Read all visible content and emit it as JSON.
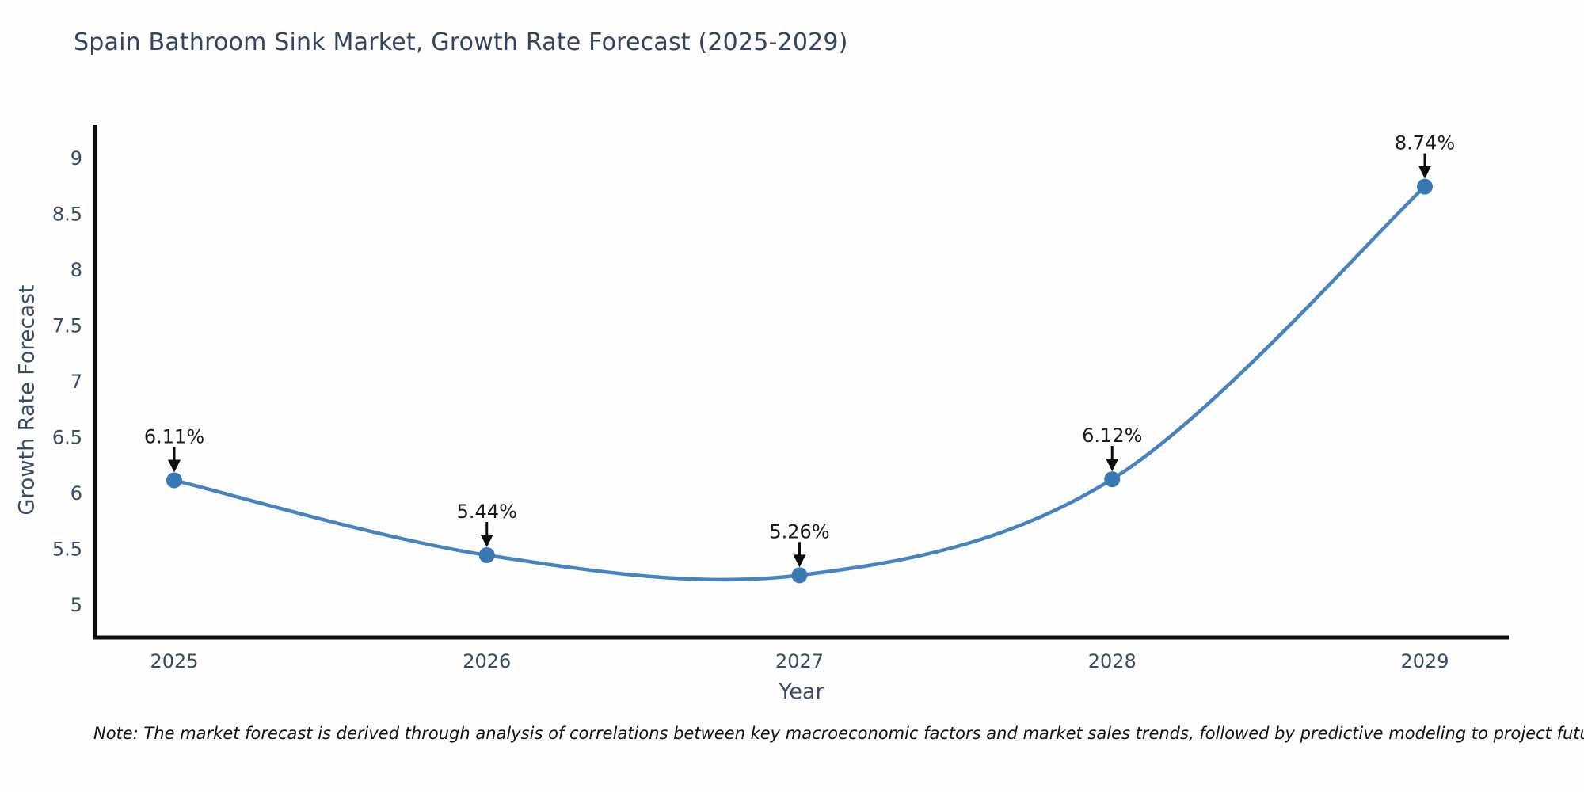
{
  "title": "Spain Bathroom Sink Market, Growth Rate Forecast (2025-2029)",
  "note": "Note: The market forecast is derived through analysis of correlations between key macroeconomic factors and market sales trends, followed by predictive modeling to project future sales",
  "chart_data": {
    "type": "line",
    "title": "Spain Bathroom Sink Market, Growth Rate Forecast (2025-2029)",
    "xlabel": "Year",
    "ylabel": "Growth Rate Forecast",
    "x": [
      "2025",
      "2026",
      "2027",
      "2028",
      "2029"
    ],
    "values": [
      6.11,
      5.44,
      5.26,
      6.12,
      8.74
    ],
    "point_labels": [
      "6.11%",
      "5.44%",
      "5.26%",
      "6.12%",
      "8.74%"
    ],
    "yticks": [
      5,
      5.5,
      6,
      6.5,
      7,
      7.5,
      8,
      8.5,
      9
    ],
    "ylim": [
      4.7,
      9.3
    ],
    "smooth": true,
    "grid": false,
    "legend": "none",
    "line_color": "#4584bf",
    "marker_color": "#3a78b4",
    "annotation_arrow_color": "#0d0d0d",
    "axis_color": "#0d0d0d",
    "tick_text_color": "#3a4a66",
    "title_color": "#36435e"
  }
}
